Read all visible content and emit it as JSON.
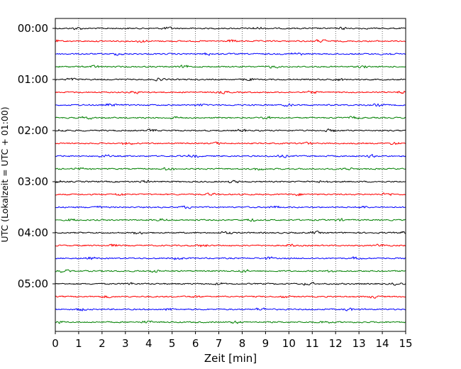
{
  "chart_data": {
    "type": "line",
    "title": "",
    "xlabel": "Zeit  [min]",
    "ylabel": "UTC (Lokalzeit = UTC + 01:00)",
    "xlim": [
      0,
      15
    ],
    "x_ticks": [
      "0",
      "1",
      "2",
      "3",
      "4",
      "5",
      "6",
      "7",
      "8",
      "9",
      "10",
      "11",
      "12",
      "13",
      "14",
      "15"
    ],
    "y_ticks": [
      "00:00",
      "01:00",
      "02:00",
      "03:00",
      "04:00",
      "05:00"
    ],
    "grid": "vertical dotted at each minute",
    "trace_interval_min": 15,
    "trace_count": 24,
    "trace_colors": [
      "#000000",
      "#ff0000",
      "#0000ff",
      "#008000"
    ],
    "traces": [
      {
        "start": "00:00"
      },
      {
        "start": "00:15"
      },
      {
        "start": "00:30"
      },
      {
        "start": "00:45"
      },
      {
        "start": "01:00"
      },
      {
        "start": "01:15"
      },
      {
        "start": "01:30"
      },
      {
        "start": "01:45"
      },
      {
        "start": "02:00"
      },
      {
        "start": "02:15"
      },
      {
        "start": "02:30"
      },
      {
        "start": "02:45"
      },
      {
        "start": "03:00"
      },
      {
        "start": "03:15"
      },
      {
        "start": "03:30"
      },
      {
        "start": "03:45"
      },
      {
        "start": "04:00"
      },
      {
        "start": "04:15"
      },
      {
        "start": "04:30"
      },
      {
        "start": "04:45"
      },
      {
        "start": "05:00"
      },
      {
        "start": "05:15"
      },
      {
        "start": "05:30"
      },
      {
        "start": "05:45"
      }
    ]
  }
}
